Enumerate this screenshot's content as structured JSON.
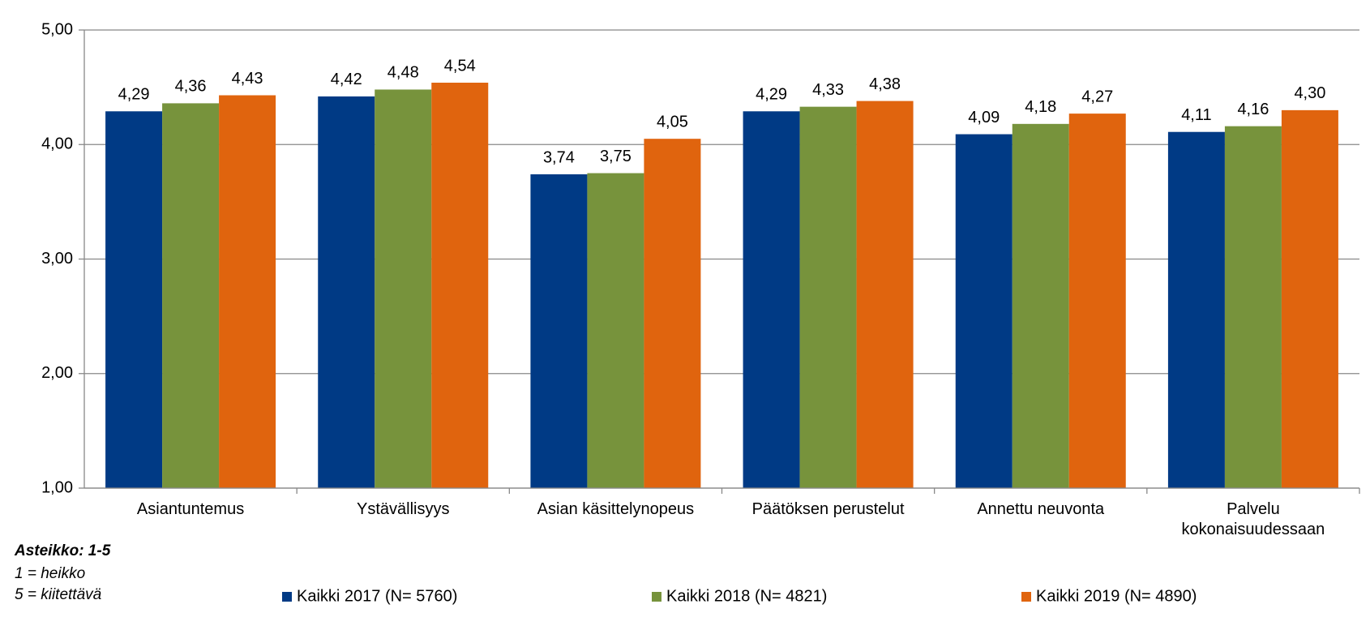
{
  "chart_data": {
    "type": "bar",
    "categories": [
      "Asiantuntemus",
      "Ystävällisyys",
      "Asian käsittelynopeus",
      "Päätöksen perustelut",
      "Annettu neuvonta",
      "Palvelu kokonaisuudessaan"
    ],
    "series": [
      {
        "name": "Kaikki 2017 (N= 5760)",
        "color": "#003a85",
        "values": [
          4.29,
          4.42,
          3.74,
          4.29,
          4.09,
          4.11
        ],
        "value_labels": [
          "4,29",
          "4,42",
          "3,74",
          "4,29",
          "4,09",
          "4,11"
        ]
      },
      {
        "name": "Kaikki 2018 (N= 4821)",
        "color": "#77933c",
        "values": [
          4.36,
          4.48,
          3.75,
          4.33,
          4.18,
          4.16
        ],
        "value_labels": [
          "4,36",
          "4,48",
          "3,75",
          "4,33",
          "4,18",
          "4,16"
        ]
      },
      {
        "name": "Kaikki 2019 (N= 4890)",
        "color": "#e0640e",
        "values": [
          4.43,
          4.54,
          4.05,
          4.38,
          4.27,
          4.3
        ],
        "value_labels": [
          "4,43",
          "4,54",
          "4,05",
          "4,38",
          "4,27",
          "4,30"
        ]
      }
    ],
    "ylim": [
      1,
      5
    ],
    "yticks": [
      {
        "value": 1,
        "label": "1,00"
      },
      {
        "value": 2,
        "label": "2,00"
      },
      {
        "value": 3,
        "label": "3,00"
      },
      {
        "value": 4,
        "label": "4,00"
      },
      {
        "value": 5,
        "label": "5,00"
      }
    ],
    "grid": true,
    "annotations": [
      "Asteikko: 1-5",
      "1 = heikko",
      "5 = kiitettävä"
    ]
  }
}
